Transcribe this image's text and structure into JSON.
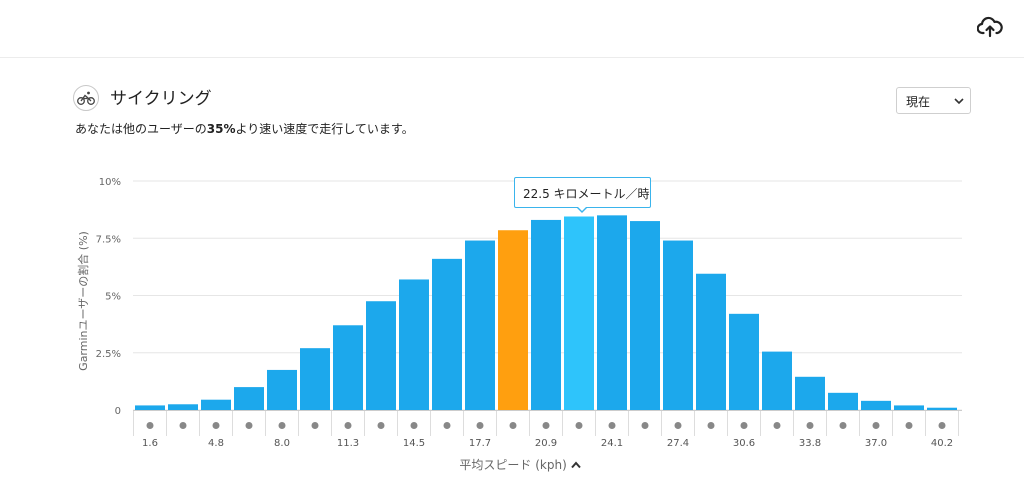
{
  "page": {
    "title": "サイクリング",
    "subtitle_prefix": "あなたは他のユーザーの",
    "subtitle_percent": "35%",
    "subtitle_suffix": "より速い速度で走行しています。",
    "period_select": "現在",
    "icons": {
      "upload": "cloud-upload-icon",
      "activity": "cycling-icon",
      "dropdown": "chevron-down-icon",
      "sort": "chevron-up-icon"
    }
  },
  "colors": {
    "bar": "#1ca8ec",
    "highlight": "#ff9f0f",
    "hover": "#2ec4fb",
    "grid": "#e6e6e6",
    "dot": "#888888"
  },
  "tooltip": {
    "text": "22.5 キロメートル／時"
  },
  "chart_data": {
    "type": "bar",
    "xlabel": "平均スピード (kph)",
    "ylabel": "Garminユーザーの割合 (%)",
    "ylim": [
      0,
      10
    ],
    "yticks": [
      "0",
      "2.5%",
      "5%",
      "7.5%",
      "10%"
    ],
    "xtick_labels": [
      "1.6",
      "4.8",
      "8.0",
      "11.3",
      "14.5",
      "17.7",
      "20.9",
      "24.1",
      "27.4",
      "30.6",
      "33.8",
      "37.0",
      "40.2"
    ],
    "grid": true,
    "values": [
      0.2,
      0.25,
      0.45,
      1.0,
      1.75,
      2.7,
      3.7,
      4.75,
      5.7,
      6.6,
      7.4,
      7.85,
      8.3,
      8.45,
      8.5,
      8.25,
      7.4,
      5.95,
      4.2,
      2.55,
      1.45,
      0.75,
      0.4,
      0.2,
      0.1
    ],
    "highlight_index": 11,
    "hover_index": 13
  }
}
